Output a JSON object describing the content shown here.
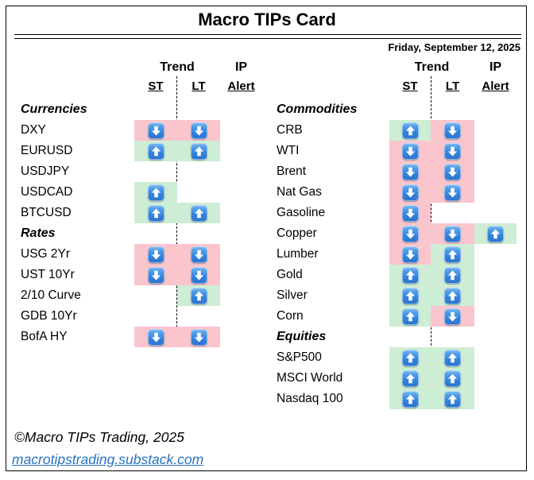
{
  "title": "Macro TIPs Card",
  "date": "Friday, September 12, 2025",
  "header": {
    "trend": "Trend",
    "ip": "IP",
    "st": "ST",
    "lt": "LT",
    "alert": "Alert"
  },
  "colors": {
    "up_bg": "#cdedd5",
    "down_bg": "#fbc5ce",
    "arrow_blue": "#3485de",
    "link_blue": "#2673c2"
  },
  "icons": {
    "up": "up-arrow-icon",
    "down": "down-arrow-icon"
  },
  "tables": [
    {
      "id": "left",
      "sections": [
        {
          "label": "Currencies",
          "rows": [
            {
              "label": "DXY",
              "st": "down",
              "lt": "down",
              "alert": null
            },
            {
              "label": "EURUSD",
              "st": "up",
              "lt": "up",
              "alert": null
            },
            {
              "label": "USDJPY",
              "st": null,
              "lt": null,
              "alert": null
            },
            {
              "label": "USDCAD",
              "st": "up",
              "lt": null,
              "alert": null
            },
            {
              "label": "BTCUSD",
              "st": "up",
              "lt": "up",
              "alert": null
            }
          ]
        },
        {
          "label": "Rates",
          "rows": [
            {
              "label": "USG 2Yr",
              "st": "down",
              "lt": "down",
              "alert": null
            },
            {
              "label": "UST 10Yr",
              "st": "down",
              "lt": "down",
              "alert": null
            },
            {
              "label": "2/10 Curve",
              "st": null,
              "lt": "up",
              "alert": null
            },
            {
              "label": "GDB 10Yr",
              "st": null,
              "lt": null,
              "alert": null
            },
            {
              "label": "BofA HY",
              "st": "down",
              "lt": "down",
              "alert": null
            }
          ]
        }
      ]
    },
    {
      "id": "right",
      "sections": [
        {
          "label": "Commodities",
          "rows": [
            {
              "label": "CRB",
              "st": "up",
              "lt": "down",
              "alert": null
            },
            {
              "label": "WTI",
              "st": "down",
              "lt": "down",
              "alert": null
            },
            {
              "label": "Brent",
              "st": "down",
              "lt": "down",
              "alert": null
            },
            {
              "label": "Nat Gas",
              "st": "down",
              "lt": "down",
              "alert": null
            },
            {
              "label": "Gasoline",
              "st": "down",
              "lt": null,
              "alert": null
            },
            {
              "label": "Copper",
              "st": "down",
              "lt": "down",
              "alert": "up"
            },
            {
              "label": "Lumber",
              "st": "down",
              "lt": "up",
              "alert": null
            },
            {
              "label": "Gold",
              "st": "up",
              "lt": "up",
              "alert": null
            },
            {
              "label": "Silver",
              "st": "up",
              "lt": "up",
              "alert": null
            },
            {
              "label": "Corn",
              "st": "up",
              "lt": "down",
              "alert": null
            }
          ]
        },
        {
          "label": "Equities",
          "rows": [
            {
              "label": "S&P500",
              "st": "up",
              "lt": "up",
              "alert": null
            },
            {
              "label": "MSCI World",
              "st": "up",
              "lt": "up",
              "alert": null
            },
            {
              "label": "Nasdaq 100",
              "st": "up",
              "lt": "up",
              "alert": null
            }
          ]
        }
      ]
    }
  ],
  "footer": {
    "copyright": "©Macro TIPs Trading, 2025",
    "link": "macrotipstrading.substack.com"
  }
}
